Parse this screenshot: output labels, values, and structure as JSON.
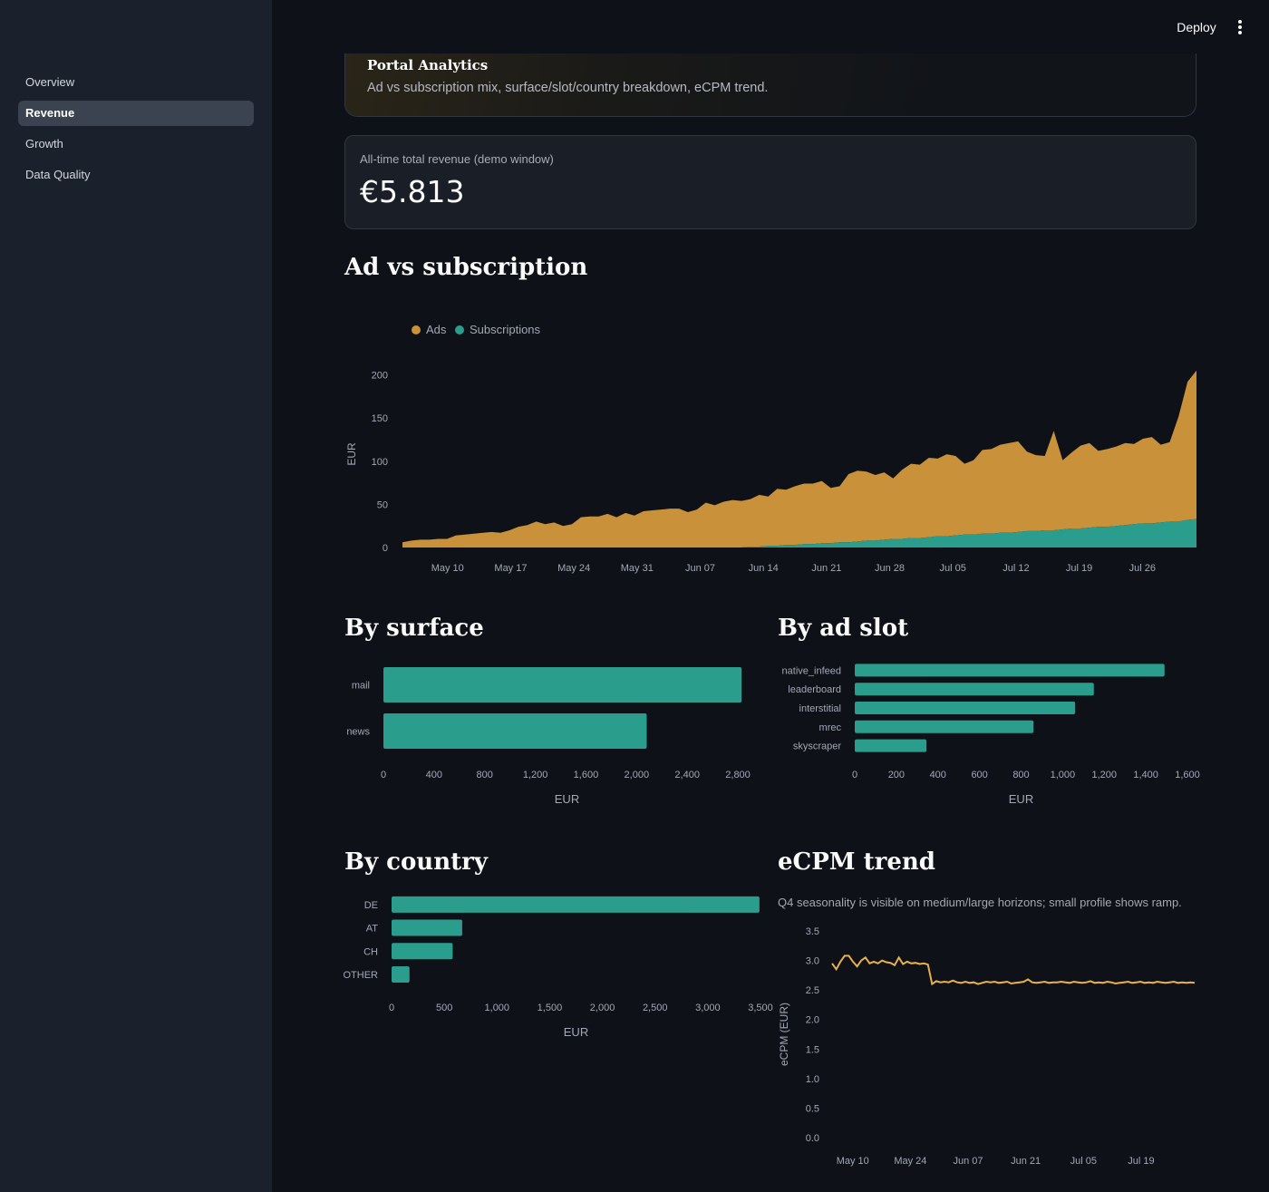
{
  "header": {
    "deploy_label": "Deploy",
    "menu_icon": "vertical-ellipsis-icon"
  },
  "sidebar": {
    "items": [
      {
        "label": "Overview",
        "active": false
      },
      {
        "label": "Revenue",
        "active": true
      },
      {
        "label": "Growth",
        "active": false
      },
      {
        "label": "Data Quality",
        "active": false
      }
    ]
  },
  "hero": {
    "title": "Portal Analytics",
    "subtitle": "Ad vs subscription mix, surface/slot/country breakdown, eCPM trend."
  },
  "metric": {
    "label": "All-time total revenue (demo window)",
    "value": "€5.813"
  },
  "sections": {
    "ad_vs_sub": "Ad vs subscription",
    "by_surface": "By surface",
    "by_ad_slot": "By ad slot",
    "by_country": "By country",
    "ecpm": "eCPM trend",
    "ecpm_caption": "Q4 seasonality is visible on medium/large horizons; small profile shows ramp."
  },
  "colors": {
    "ads": "#c8913a",
    "subscriptions": "#2a9d8c",
    "ecpm_line": "#e8b14a",
    "bar": "#2a9d8c"
  },
  "chart_data": [
    {
      "type": "area",
      "stacked": true,
      "legend": [
        "Ads",
        "Subscriptions"
      ],
      "legend_position": "top-left",
      "ylabel": "EUR",
      "xlabel": "",
      "ylim": [
        0,
        210
      ],
      "yticks": [
        0,
        50,
        100,
        150,
        200
      ],
      "x_start": "2024-05-05",
      "x_end": "2024-08-01",
      "xtick_labels": [
        "May 10",
        "May 17",
        "May 24",
        "May 31",
        "Jun 07",
        "Jun 14",
        "Jun 21",
        "Jun 28",
        "Jul 05",
        "Jul 12",
        "Jul 19",
        "Jul 26"
      ],
      "series": [
        {
          "name": "Ads",
          "values": [
            6,
            8,
            9,
            9,
            10,
            10,
            14,
            15,
            16,
            17,
            18,
            17,
            20,
            24,
            26,
            30,
            27,
            29,
            25,
            27,
            35,
            36,
            36,
            39,
            35,
            40,
            37,
            42,
            43,
            44,
            45,
            45,
            41,
            44,
            52,
            49,
            53,
            55,
            54,
            55,
            60,
            57,
            66,
            64,
            68,
            70,
            70,
            72,
            64,
            65,
            79,
            82,
            80,
            76,
            78,
            70,
            80,
            86,
            85,
            92,
            90,
            95,
            92,
            82,
            86,
            97,
            98,
            102,
            104,
            105,
            92,
            88,
            86,
            115,
            80,
            88,
            96,
            98,
            88,
            90,
            92,
            95,
            93,
            98,
            100,
            90,
            92,
            122,
            160,
            172
          ]
        },
        {
          "name": "Subscriptions",
          "values": [
            0,
            0,
            0,
            0,
            0,
            0,
            0,
            0,
            0,
            0,
            0,
            0,
            0,
            0,
            0,
            0,
            0,
            0,
            0,
            0,
            0,
            0,
            0,
            0,
            0,
            0,
            0,
            0,
            0,
            0,
            0,
            0,
            0,
            0,
            0,
            0,
            0,
            0,
            0,
            1,
            1,
            2,
            2,
            3,
            3,
            4,
            4,
            5,
            5,
            6,
            6,
            7,
            8,
            8,
            9,
            10,
            10,
            11,
            11,
            12,
            13,
            13,
            14,
            15,
            15,
            16,
            16,
            17,
            17,
            18,
            19,
            19,
            20,
            20,
            21,
            22,
            22,
            23,
            24,
            24,
            25,
            26,
            27,
            28,
            28,
            29,
            30,
            30,
            32,
            33
          ]
        }
      ]
    },
    {
      "type": "bar",
      "orientation": "horizontal",
      "categories": [
        "mail",
        "news"
      ],
      "values": [
        2830,
        2080
      ],
      "xlabel": "EUR",
      "xlim": [
        0,
        2900
      ],
      "xticks": [
        0,
        400,
        800,
        1200,
        1600,
        2000,
        2400,
        2800
      ]
    },
    {
      "type": "bar",
      "orientation": "horizontal",
      "categories": [
        "native_infeed",
        "leaderboard",
        "interstitial",
        "mrec",
        "skyscraper"
      ],
      "values": [
        1490,
        1150,
        1060,
        860,
        345
      ],
      "xlabel": "EUR",
      "xlim": [
        0,
        1600
      ],
      "xticks": [
        0,
        200,
        400,
        600,
        800,
        1000,
        1200,
        1400,
        1600
      ]
    },
    {
      "type": "bar",
      "orientation": "horizontal",
      "categories": [
        "DE",
        "AT",
        "CH",
        "OTHER"
      ],
      "values": [
        3490,
        670,
        580,
        170
      ],
      "xlabel": "EUR",
      "xlim": [
        0,
        3500
      ],
      "xticks": [
        0,
        500,
        1000,
        1500,
        2000,
        2500,
        3000,
        3500
      ]
    },
    {
      "type": "line",
      "ylabel": "eCPM (EUR)",
      "ylim": [
        0,
        3.5
      ],
      "yticks": [
        0.0,
        0.5,
        1.0,
        1.5,
        2.0,
        2.5,
        3.0,
        3.5
      ],
      "xtick_labels": [
        "May 10",
        "May 24",
        "Jun 07",
        "Jun 21",
        "Jul 05",
        "Jul 19"
      ],
      "x_start": "2024-05-05",
      "x_end": "2024-08-01",
      "values": [
        2.95,
        2.85,
        2.98,
        3.08,
        3.08,
        2.98,
        2.9,
        3.0,
        3.05,
        2.95,
        2.98,
        2.95,
        3.0,
        2.97,
        2.96,
        2.92,
        3.05,
        2.94,
        2.98,
        2.95,
        2.96,
        2.94,
        2.95,
        2.93,
        2.6,
        2.65,
        2.63,
        2.64,
        2.63,
        2.66,
        2.63,
        2.62,
        2.64,
        2.62,
        2.63,
        2.6,
        2.62,
        2.64,
        2.63,
        2.64,
        2.62,
        2.63,
        2.64,
        2.61,
        2.62,
        2.63,
        2.64,
        2.68,
        2.63,
        2.62,
        2.63,
        2.64,
        2.62,
        2.63,
        2.63,
        2.64,
        2.63,
        2.62,
        2.64,
        2.63,
        2.62,
        2.63,
        2.65,
        2.62,
        2.63,
        2.62,
        2.64,
        2.63,
        2.61,
        2.62,
        2.63,
        2.64,
        2.62,
        2.63,
        2.64,
        2.62,
        2.63,
        2.62,
        2.64,
        2.63,
        2.62,
        2.63,
        2.64,
        2.62,
        2.63,
        2.62,
        2.63,
        2.62
      ]
    }
  ]
}
